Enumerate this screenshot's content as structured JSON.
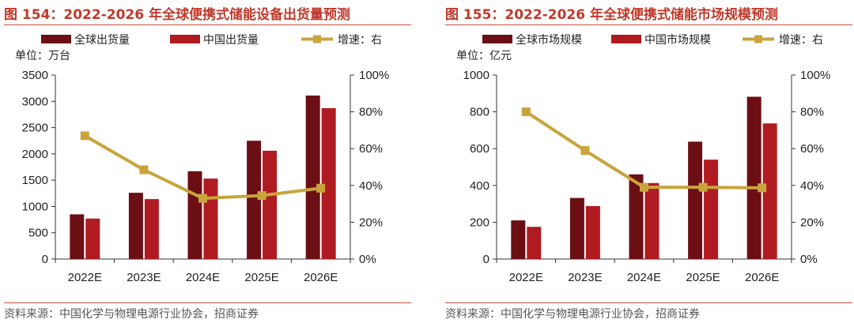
{
  "colors": {
    "global": "#6b0f15",
    "china": "#b01b21",
    "growth": "#c9a43c",
    "title": "#c0392b",
    "rule": "#c8503c"
  },
  "legend_icons": {
    "bar": "square-swatch",
    "line": "line-square-marker"
  },
  "chart_data": [
    {
      "type": "bar",
      "figure_title": "图 154：2022-2026 年全球便携式储能设备出货量预测",
      "unit_label": "单位：万台",
      "categories": [
        "2022E",
        "2023E",
        "2024E",
        "2025E",
        "2026E"
      ],
      "series": [
        {
          "name": "全球出货量",
          "type": "bar",
          "axis": "left",
          "values": [
            850,
            1260,
            1670,
            2250,
            3110
          ]
        },
        {
          "name": "中国出货量",
          "type": "bar",
          "axis": "left",
          "values": [
            770,
            1140,
            1530,
            2060,
            2870
          ]
        },
        {
          "name": "增速：右",
          "type": "line",
          "axis": "right",
          "values": [
            67,
            48.5,
            33,
            34.5,
            38.5
          ]
        }
      ],
      "y_left": {
        "min": 0,
        "max": 3500,
        "step": 500,
        "ticks": [
          "0",
          "500",
          "1000",
          "1500",
          "2000",
          "2500",
          "3000",
          "3500"
        ]
      },
      "y_right": {
        "min": 0,
        "max": 100,
        "step": 20,
        "ticks": [
          "0%",
          "20%",
          "40%",
          "60%",
          "80%",
          "100%"
        ]
      },
      "legend_position": "top",
      "grid": false,
      "source": "资料来源：中国化学与物理电源行业协会，招商证券"
    },
    {
      "type": "bar",
      "figure_title": "图 155：2022-2026 年全球便携式储能市场规模预测",
      "unit_label": "单位：亿元",
      "categories": [
        "2022E",
        "2023E",
        "2024E",
        "2025E",
        "2026E"
      ],
      "series": [
        {
          "name": "全球市场规模",
          "type": "bar",
          "axis": "left",
          "values": [
            210,
            332,
            460,
            638,
            882
          ]
        },
        {
          "name": "中国市场规模",
          "type": "bar",
          "axis": "left",
          "values": [
            175,
            288,
            413,
            540,
            737
          ]
        },
        {
          "name": "增速：右",
          "type": "line",
          "axis": "right",
          "values": [
            80,
            59,
            39,
            39,
            38.7
          ]
        }
      ],
      "y_left": {
        "min": 0,
        "max": 1000,
        "step": 200,
        "ticks": [
          "0",
          "200",
          "400",
          "600",
          "800",
          "1000"
        ]
      },
      "y_right": {
        "min": 0,
        "max": 100,
        "step": 20,
        "ticks": [
          "0%",
          "20%",
          "40%",
          "60%",
          "80%",
          "100%"
        ]
      },
      "legend_position": "top",
      "grid": false,
      "source": "资料来源：中国化学与物理电源行业协会，招商证券"
    }
  ]
}
